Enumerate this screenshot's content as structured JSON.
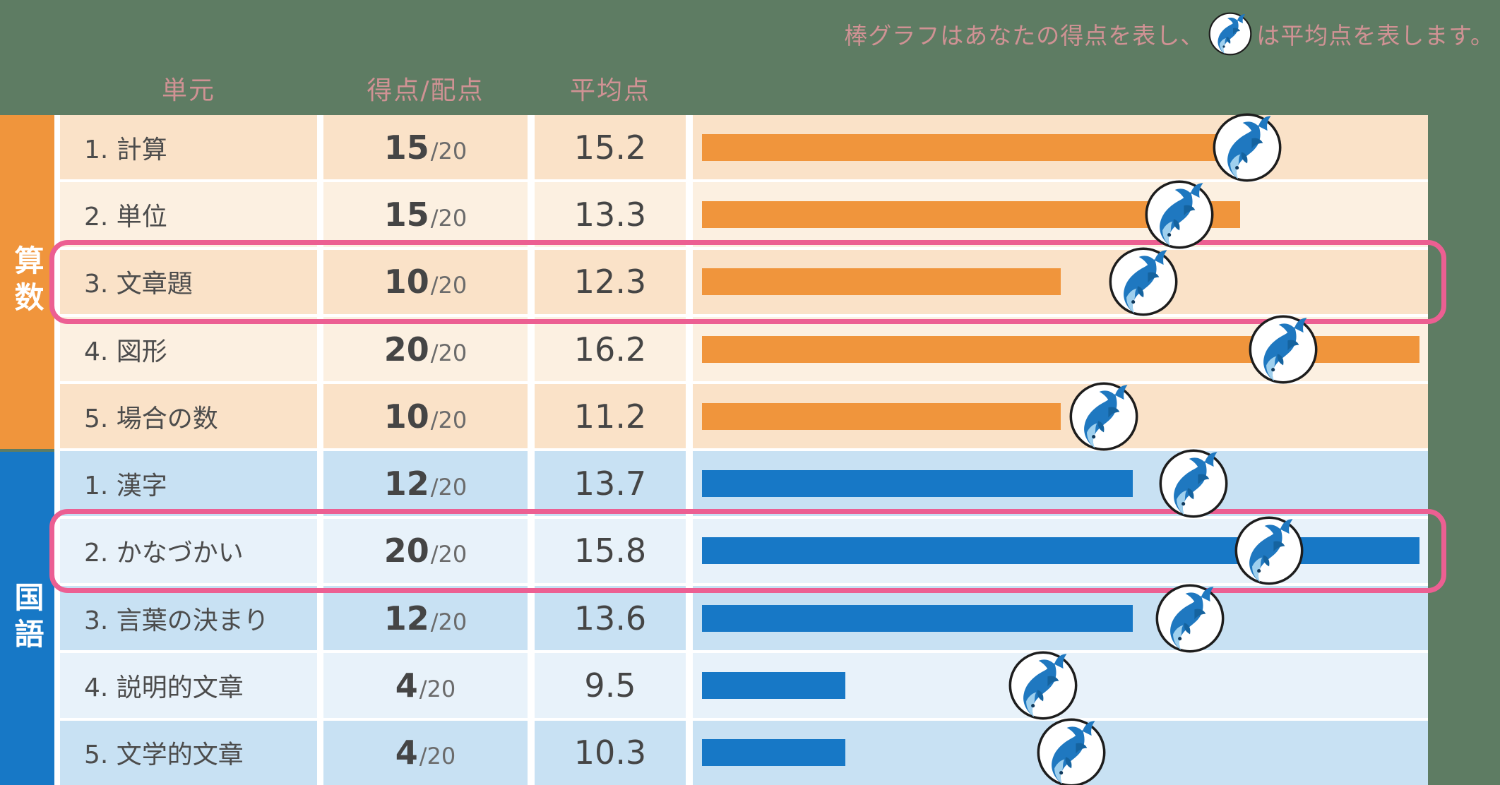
{
  "legend": {
    "text_before_icon": "棒グラフはあなたの得点を表し、",
    "text_after_icon": "は平均点を表します。",
    "icon": "dolphin-icon"
  },
  "headers": {
    "unit": "単元",
    "score": "得点/配点",
    "average": "平均点"
  },
  "sections": [
    {
      "id": "math",
      "label": "算数",
      "color": "#F0953C"
    },
    {
      "id": "japanese",
      "label": "国語",
      "color": "#1778C6"
    }
  ],
  "colors": {
    "background": "#5E7C63",
    "header_text": "#D09294",
    "math_accent": "#F0953C",
    "japanese_accent": "#1778C6",
    "math_row_dark": "#FAE2C8",
    "math_row_light": "#FCF0E1",
    "japanese_row_dark": "#C8E1F3",
    "japanese_row_light": "#E8F2FA",
    "highlight_border": "#EC5F92"
  },
  "chart": {
    "max_score": 20
  },
  "rows": [
    {
      "section": "math",
      "label": "1. 計算",
      "score": 15,
      "max": "/20",
      "average": 15.2,
      "highlight": false
    },
    {
      "section": "math",
      "label": "2. 単位",
      "score": 15,
      "max": "/20",
      "average": 13.3,
      "highlight": false
    },
    {
      "section": "math",
      "label": "3. 文章題",
      "score": 10,
      "max": "/20",
      "average": 12.3,
      "highlight": true
    },
    {
      "section": "math",
      "label": "4. 図形",
      "score": 20,
      "max": "/20",
      "average": 16.2,
      "highlight": false
    },
    {
      "section": "math",
      "label": "5. 場合の数",
      "score": 10,
      "max": "/20",
      "average": 11.2,
      "highlight": false
    },
    {
      "section": "japanese",
      "label": "1. 漢字",
      "score": 12,
      "max": "/20",
      "average": 13.7,
      "highlight": false
    },
    {
      "section": "japanese",
      "label": "2. かなづかい",
      "score": 20,
      "max": "/20",
      "average": 15.8,
      "highlight": true
    },
    {
      "section": "japanese",
      "label": "3. 言葉の決まり",
      "score": 12,
      "max": "/20",
      "average": 13.6,
      "highlight": false
    },
    {
      "section": "japanese",
      "label": "4. 説明的文章",
      "score": 4,
      "max": "/20",
      "average": 9.5,
      "highlight": false
    },
    {
      "section": "japanese",
      "label": "5. 文学的文章",
      "score": 4,
      "max": "/20",
      "average": 10.3,
      "highlight": false
    }
  ],
  "chart_data": {
    "type": "bar",
    "orientation": "horizontal",
    "title": "",
    "categories": [
      "算数 1. 計算",
      "算数 2. 単位",
      "算数 3. 文章題",
      "算数 4. 図形",
      "算数 5. 場合の数",
      "国語 1. 漢字",
      "国語 2. かなづかい",
      "国語 3. 言葉の決まり",
      "国語 4. 説明的文章",
      "国語 5. 文学的文章"
    ],
    "series": [
      {
        "name": "得点 (棒グラフ)",
        "values": [
          15,
          15,
          10,
          20,
          10,
          12,
          20,
          12,
          4,
          4
        ]
      },
      {
        "name": "平均点 (イルカマーカー)",
        "values": [
          15.2,
          13.3,
          12.3,
          16.2,
          11.2,
          13.7,
          15.8,
          13.6,
          9.5,
          10.3
        ]
      }
    ],
    "xlim": [
      0,
      20
    ],
    "highlighted_rows": [
      "算数 3. 文章題",
      "国語 2. かなづかい"
    ],
    "legend_position": "top-right",
    "grid": false
  }
}
